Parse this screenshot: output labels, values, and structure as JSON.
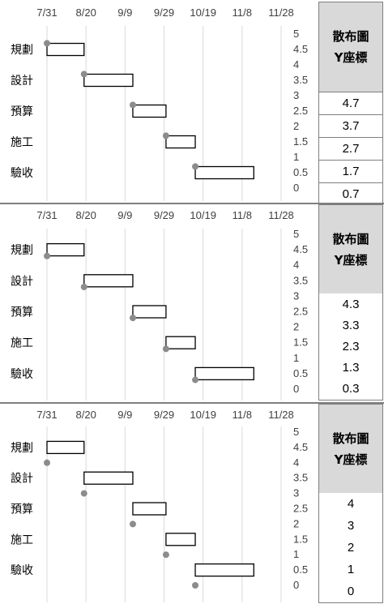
{
  "chart_data": [
    {
      "type": "scatter-gantt",
      "header": [
        "散布圖",
        "Y座標"
      ],
      "x_ticks": [
        "7/31",
        "8/20",
        "9/9",
        "9/29",
        "10/19",
        "11/8",
        "11/28"
      ],
      "y_ticks": [
        "5",
        "4.5",
        "4",
        "3.5",
        "3",
        "2.5",
        "2",
        "1.5",
        "1",
        "0.5",
        "0"
      ],
      "ylim": [
        0,
        5
      ],
      "grid": "vertical",
      "tasks": [
        {
          "label": "規劃",
          "start": "7/31",
          "end": "8/19"
        },
        {
          "label": "設計",
          "start": "8/19",
          "end": "9/13"
        },
        {
          "label": "預算",
          "start": "9/13",
          "end": "9/30"
        },
        {
          "label": "施工",
          "start": "9/30",
          "end": "10/15"
        },
        {
          "label": "驗收",
          "start": "10/15",
          "end": "11/14"
        }
      ],
      "scatter_y": [
        "4.7",
        "3.7",
        "2.7",
        "1.7",
        "0.7"
      ],
      "marker_color": "#8c8c8c"
    },
    {
      "type": "scatter-gantt",
      "header": [
        "散布圖",
        "Y座標"
      ],
      "x_ticks": [
        "7/31",
        "8/20",
        "9/9",
        "9/29",
        "10/19",
        "11/8",
        "11/28"
      ],
      "y_ticks": [
        "5",
        "4.5",
        "4",
        "3.5",
        "3",
        "2.5",
        "2",
        "1.5",
        "1",
        "0.5",
        "0"
      ],
      "ylim": [
        0,
        5
      ],
      "grid": "vertical",
      "tasks": [
        {
          "label": "規劃",
          "start": "7/31",
          "end": "8/19"
        },
        {
          "label": "設計",
          "start": "8/19",
          "end": "9/13"
        },
        {
          "label": "預算",
          "start": "9/13",
          "end": "9/30"
        },
        {
          "label": "施工",
          "start": "9/30",
          "end": "10/15"
        },
        {
          "label": "驗收",
          "start": "10/15",
          "end": "11/14"
        }
      ],
      "scatter_y": [
        "4.3",
        "3.3",
        "2.3",
        "1.3",
        "0.3"
      ],
      "marker_color": "#8c8c8c"
    },
    {
      "type": "scatter-gantt",
      "header": [
        "散布圖",
        "Y座標"
      ],
      "x_ticks": [
        "7/31",
        "8/20",
        "9/9",
        "9/29",
        "10/19",
        "11/8",
        "11/28"
      ],
      "y_ticks": [
        "5",
        "4.5",
        "4",
        "3.5",
        "3",
        "2.5",
        "2",
        "1.5",
        "1",
        "0.5",
        "0"
      ],
      "ylim": [
        0,
        5
      ],
      "grid": "vertical",
      "tasks": [
        {
          "label": "規劃",
          "start": "7/31",
          "end": "8/19"
        },
        {
          "label": "設計",
          "start": "8/19",
          "end": "9/13"
        },
        {
          "label": "預算",
          "start": "9/13",
          "end": "9/30"
        },
        {
          "label": "施工",
          "start": "9/30",
          "end": "10/15"
        },
        {
          "label": "驗收",
          "start": "10/15",
          "end": "11/14"
        }
      ],
      "scatter_y": [
        "4",
        "3",
        "2",
        "1",
        "0"
      ],
      "marker_color": "#8c8c8c"
    }
  ]
}
